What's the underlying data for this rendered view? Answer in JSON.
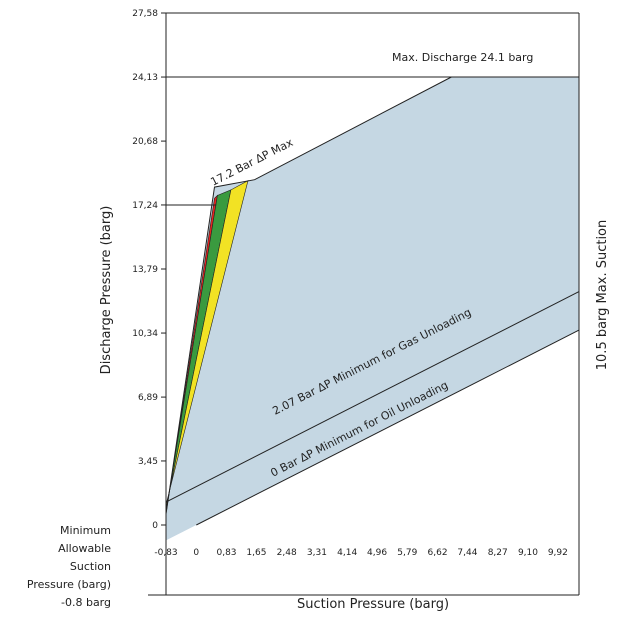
{
  "chart_data": {
    "type": "area",
    "title": "",
    "xlabel": "Suction Pressure (barg)",
    "ylabel": "Discharge Pressure (barg)",
    "right_label": "10.5 barg Max. Suction",
    "xlim": [
      -0.83,
      10.5
    ],
    "ylim": [
      0,
      27.58
    ],
    "x_ticks": [
      {
        "value": -0.83,
        "label": "-0,83"
      },
      {
        "value": 0,
        "label": "0"
      },
      {
        "value": 0.83,
        "label": "0,83"
      },
      {
        "value": 1.65,
        "label": "1,65"
      },
      {
        "value": 2.48,
        "label": "2,48"
      },
      {
        "value": 3.31,
        "label": "3,31"
      },
      {
        "value": 4.14,
        "label": "4,14"
      },
      {
        "value": 4.96,
        "label": "4,96"
      },
      {
        "value": 5.79,
        "label": "5,79"
      },
      {
        "value": 6.62,
        "label": "6,62"
      },
      {
        "value": 7.44,
        "label": "7,44"
      },
      {
        "value": 8.27,
        "label": "8,27"
      },
      {
        "value": 9.1,
        "label": "9,10"
      },
      {
        "value": 9.92,
        "label": "9,92"
      }
    ],
    "y_ticks": [
      {
        "value": 0,
        "label": "0"
      },
      {
        "value": 3.45,
        "label": "3,45"
      },
      {
        "value": 6.89,
        "label": "6,89"
      },
      {
        "value": 10.34,
        "label": "10,34"
      },
      {
        "value": 13.79,
        "label": "13,79"
      },
      {
        "value": 17.24,
        "label": "17,24"
      },
      {
        "value": 20.68,
        "label": "20,68"
      },
      {
        "value": 24.13,
        "label": "24,13"
      },
      {
        "value": 27.58,
        "label": "27,58"
      }
    ],
    "envelope": {
      "color": "#c5d7e3",
      "points": [
        [
          -0.83,
          0.6
        ],
        [
          0.5,
          18.2
        ],
        [
          1.6,
          18.6
        ],
        [
          7.0,
          24.13
        ],
        [
          10.5,
          24.13
        ],
        [
          10.5,
          10.5
        ],
        [
          0.0,
          0.0
        ],
        [
          -0.83,
          -0.83
        ]
      ]
    },
    "bands": [
      {
        "color": "#e52421",
        "points": [
          [
            -0.83,
            0.6
          ],
          [
            0.5,
            17.6
          ],
          [
            0.58,
            17.75
          ],
          [
            -0.83,
            0.7
          ]
        ]
      },
      {
        "color": "#3a9a3f",
        "points": [
          [
            -0.83,
            0.7
          ],
          [
            0.58,
            17.75
          ],
          [
            0.95,
            18.05
          ],
          [
            -0.83,
            0.9
          ]
        ]
      },
      {
        "color": "#f2e224",
        "points": [
          [
            -0.83,
            0.9
          ],
          [
            0.95,
            18.05
          ],
          [
            1.42,
            18.55
          ],
          [
            -0.83,
            1.1
          ]
        ]
      }
    ],
    "reference_lines": [
      {
        "points": [
          [
            -0.83,
            24.13
          ],
          [
            10.5,
            24.13
          ]
        ]
      },
      {
        "points": [
          [
            -0.83,
            1.24
          ],
          [
            10.5,
            12.57
          ]
        ]
      },
      {
        "points": [
          [
            0.0,
            0.0
          ],
          [
            10.5,
            10.5
          ]
        ]
      },
      {
        "points": [
          [
            -0.83,
            17.24
          ],
          [
            0.55,
            17.24
          ]
        ]
      }
    ],
    "annotations": {
      "max_discharge": "Max. Discharge 24.1 barg",
      "dp_max": "17.2 Bar ΔP Max",
      "gas_unloading": "2.07 Bar ΔP Minimum for Gas Unloading",
      "oil_unloading": "0 Bar ΔP Minimum for Oil Unloading"
    },
    "min_suction_note": [
      "Minimum",
      "Allowable",
      "Suction",
      "Pressure (barg)",
      "-0.8 barg"
    ],
    "grid": false,
    "legend": "none"
  }
}
